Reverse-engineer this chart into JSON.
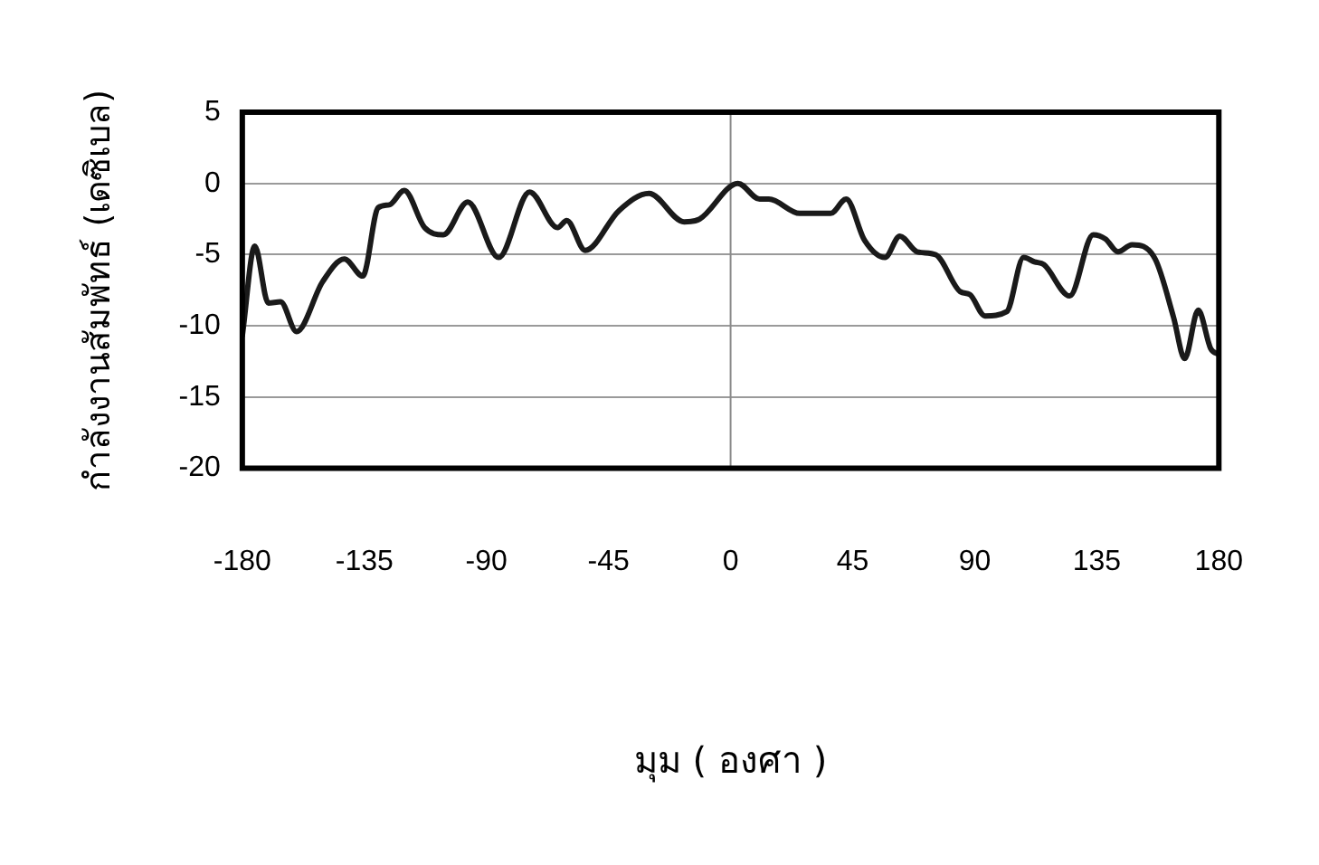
{
  "chart_data": {
    "type": "line",
    "xlabel": "มุม ( องศา )",
    "ylabel": "กำลังงานสัมพัทธ์ (เดซิเบล)",
    "series": [
      {
        "color": "#1a1a1a",
        "x": [
          -180,
          -175.4,
          -170.4,
          -165.9,
          -160,
          -150.4,
          -142.4,
          -135.6,
          -129.9,
          -125.8,
          -120.3,
          -112.8,
          -105.9,
          -96.9,
          -85.5,
          -74.1,
          -63.8,
          -60.4,
          -53.6,
          -41.1,
          -30.1,
          -17.1,
          -11.4,
          2.7,
          10.7,
          14.1,
          25.5,
          36.9,
          42.6,
          49.4,
          56.9,
          62.4,
          68.8,
          75.6,
          84.7,
          88.2,
          93.8,
          101.8,
          108,
          112,
          115.5,
          125,
          133.7,
          138.2,
          142.8,
          148,
          156.5,
          163.3,
          167.4,
          172.4,
          177,
          180
        ],
        "values": [
          -10.7,
          -4.4,
          -8.4,
          -8.3,
          -10.4,
          -6.9,
          -5.3,
          -6.5,
          -1.7,
          -1.5,
          -0.5,
          -3.1,
          -3.6,
          -1.3,
          -5.2,
          -0.6,
          -3.1,
          -2.6,
          -4.7,
          -1.9,
          -0.7,
          -2.7,
          -2.5,
          0,
          -1.1,
          -1.1,
          -2.1,
          -2.1,
          -1.1,
          -4,
          -5.2,
          -3.7,
          -4.8,
          -5,
          -7.6,
          -7.8,
          -9.3,
          -9,
          -5.2,
          -5.5,
          -5.7,
          -7.9,
          -3.6,
          -3.9,
          -4.8,
          -4.3,
          -5.3,
          -9.4,
          -12.3,
          -8.9,
          -11.6,
          -12
        ]
      }
    ],
    "xlim": [
      -180,
      180
    ],
    "xticks": [
      -180,
      -135,
      -90,
      -45,
      0,
      45,
      90,
      135,
      180
    ],
    "ylim": [
      -20,
      5
    ],
    "yticks": [
      -20,
      -15,
      -10,
      -5,
      0,
      5
    ],
    "grid": "y",
    "legend": false,
    "marker": "none",
    "line_style": "solid",
    "ref_lines": [
      {
        "axis": "x",
        "value": 0,
        "color": "#8a8a8a"
      }
    ]
  }
}
